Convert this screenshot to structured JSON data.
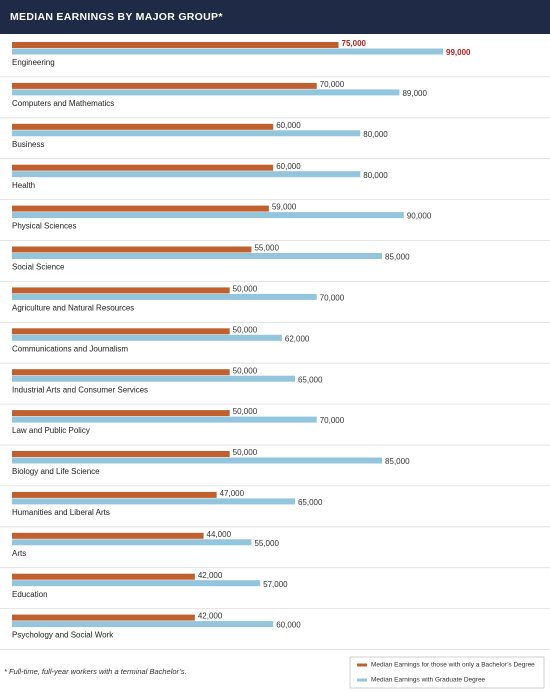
{
  "chart_data": {
    "type": "bar",
    "orientation": "horizontal",
    "title": "MEDIAN EARNINGS BY MAJOR GROUP*",
    "footnote": "* Full-time, full-year workers with a terminal Bachelor’s.",
    "categories": [
      "Engineering",
      "Computers and Mathematics",
      "Business",
      "Health",
      "Physical Sciences",
      "Social Science",
      "Agriculture and Natural Resources",
      "Communications and Journalism",
      "Industrial Arts and Consumer Services",
      "Law and Public Policy",
      "Biology and Life Science",
      "Humanities and Liberal Arts",
      "Arts",
      "Education",
      "Psychology and Social Work"
    ],
    "series": [
      {
        "name": "Median Earnings for those with only a Bachelor’s Degree",
        "color": "#c0602f",
        "values": [
          75000,
          70000,
          60000,
          60000,
          59000,
          55000,
          50000,
          50000,
          50000,
          50000,
          50000,
          47000,
          44000,
          42000,
          42000
        ],
        "value_labels": [
          "75,000",
          "70,000",
          "60,000",
          "60,000",
          "59,000",
          "55,000",
          "50,000",
          "50,000",
          "50,000",
          "50,000",
          "50,000",
          "47,000",
          "44,000",
          "42,000",
          "42,000"
        ]
      },
      {
        "name": "Median Earnings with Graduate Degree",
        "color": "#93c5dc",
        "values": [
          99000,
          89000,
          80000,
          80000,
          90000,
          85000,
          70000,
          62000,
          65000,
          70000,
          85000,
          65000,
          55000,
          57000,
          60000
        ],
        "value_labels": [
          "99,000",
          "89,000",
          "80,000",
          "80,000",
          "90,000",
          "85,000",
          "70,000",
          "62,000",
          "65,000",
          "70,000",
          "85,000",
          "65,000",
          "55,000",
          "57,000",
          "60,000"
        ]
      }
    ]
  }
}
